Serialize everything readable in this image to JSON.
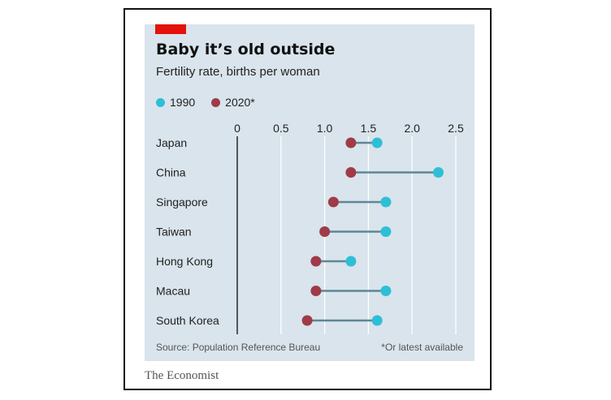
{
  "header": {
    "title": "Baby it’s old outside",
    "subtitle": "Fertility rate, births per woman"
  },
  "legend": [
    {
      "label": "1990",
      "color": "#2ebfd6"
    },
    {
      "label": "2020*",
      "color": "#a03b48"
    }
  ],
  "footer": {
    "source": "Source: Population Reference Bureau",
    "note": "*Or latest available",
    "brand": "The Economist"
  },
  "colors": {
    "accent_red": "#e3120b",
    "connector": "#5e8796",
    "axis": "#333333",
    "grid": "#ffffff",
    "panel_bg": "#d9e4ec"
  },
  "chart_data": {
    "type": "dumbbell",
    "xlim": [
      0,
      2.5
    ],
    "xticks": [
      0,
      0.5,
      1.0,
      1.5,
      2.0,
      2.5
    ],
    "xtick_labels": [
      "0",
      "0.5",
      "1.0",
      "1.5",
      "2.0",
      "2.5"
    ],
    "grid": true,
    "legend_position": "top-left",
    "categories": [
      "Japan",
      "China",
      "Singapore",
      "Taiwan",
      "Hong Kong",
      "Macau",
      "South Korea"
    ],
    "series": [
      {
        "name": "1990",
        "values": [
          1.6,
          2.3,
          1.7,
          1.7,
          1.3,
          1.7,
          1.6
        ]
      },
      {
        "name": "2020*",
        "values": [
          1.3,
          1.3,
          1.1,
          1.0,
          0.9,
          0.9,
          0.8
        ]
      }
    ]
  }
}
